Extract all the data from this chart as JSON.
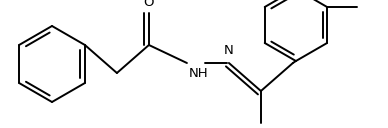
{
  "background": "#ffffff",
  "lc": "#000000",
  "lw": 1.4,
  "fs": 9.5,
  "figsize": [
    3.88,
    1.28
  ],
  "dpi": 100,
  "xlim": [
    0,
    388
  ],
  "ylim": [
    0,
    128
  ]
}
